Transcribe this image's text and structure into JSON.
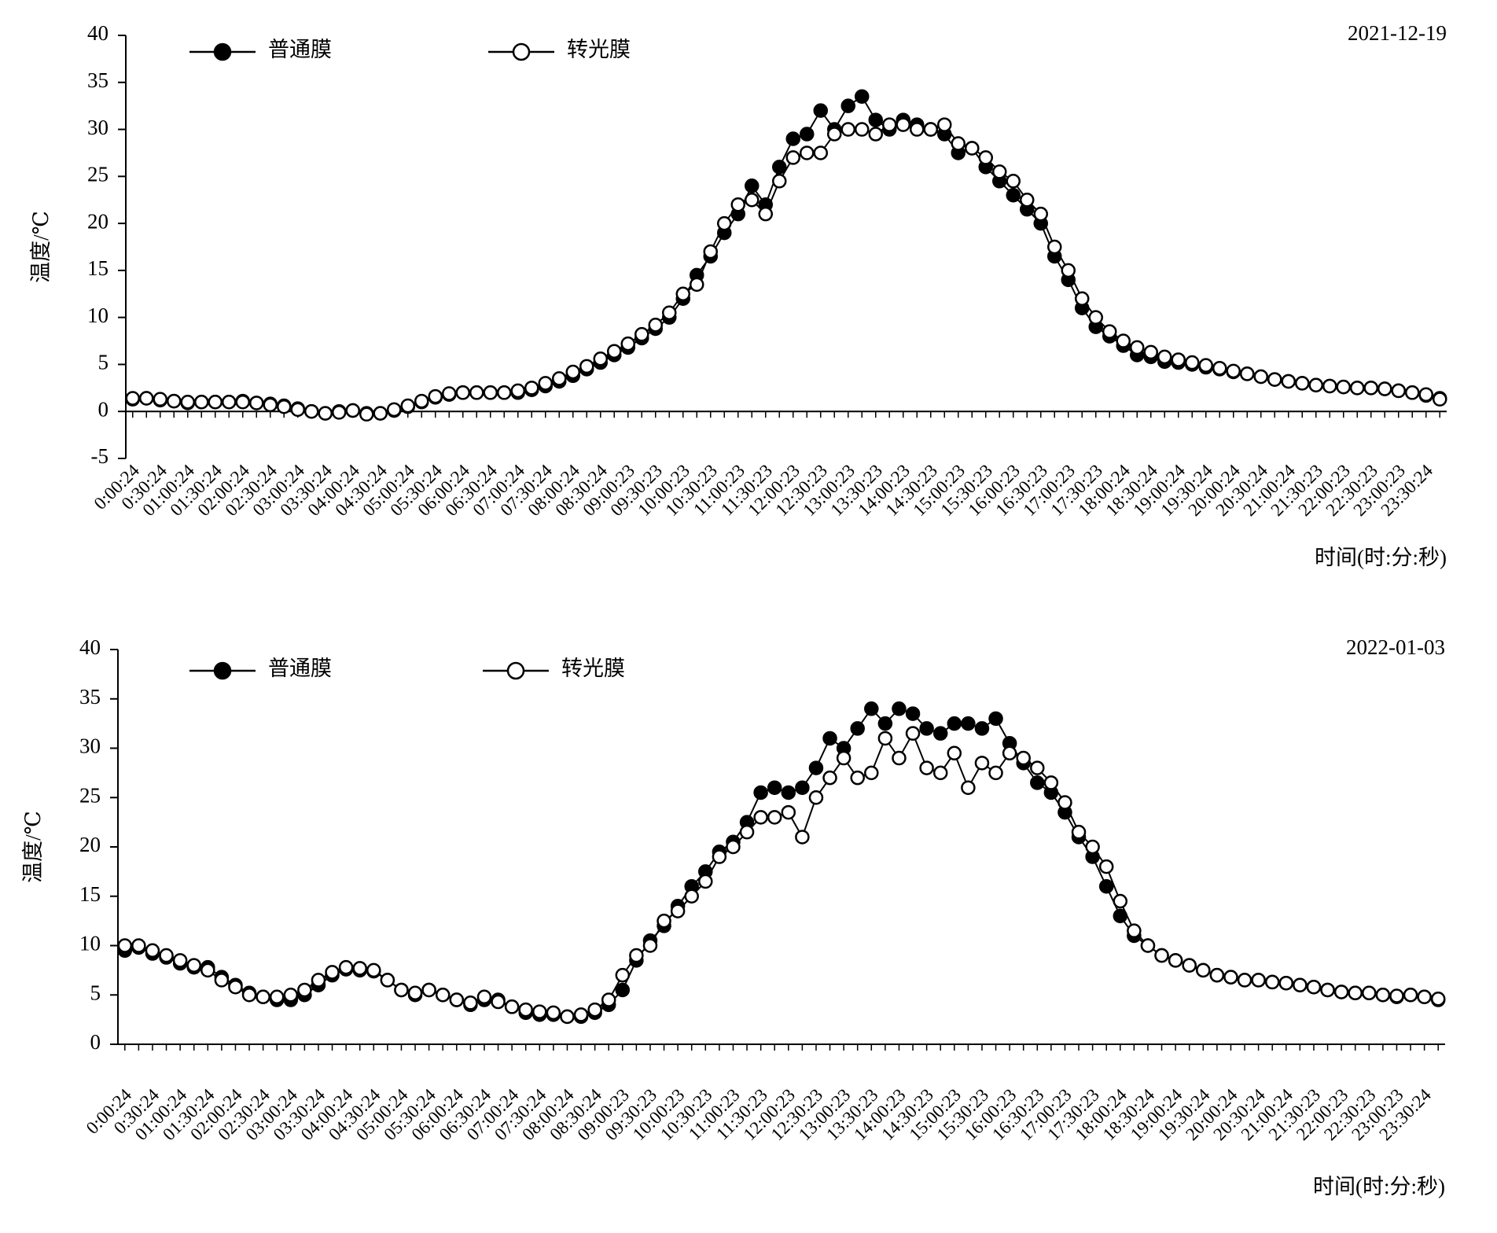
{
  "chart_data": [
    {
      "type": "line",
      "annotation": "2021-12-19",
      "x_label": "时间(时:分:秒)",
      "y_label": "温度/℃",
      "ylim": [
        -5,
        40
      ],
      "yticks": [
        -5,
        0,
        5,
        10,
        15,
        20,
        25,
        30,
        35,
        40
      ],
      "legend": "top-left",
      "categories": [
        "0:00:24",
        null,
        "0:30:24",
        null,
        "01:00:24",
        null,
        "01:30:24",
        null,
        "02:00:24",
        null,
        "02:30:24",
        null,
        "03:00:24",
        null,
        "03:30:24",
        null,
        "04:00:24",
        null,
        "04:30:24",
        null,
        "05:00:24",
        null,
        "05:30:24",
        null,
        "06:00:24",
        null,
        "06:30:24",
        null,
        "07:00:24",
        null,
        "07:30:24",
        null,
        "08:00:24",
        null,
        "08:30:24",
        null,
        "09:00:23",
        null,
        "09:30:23",
        null,
        "10:00:23",
        null,
        "10:30:23",
        null,
        "11:00:23",
        null,
        "11:30:23",
        null,
        "12:00:23",
        null,
        "12:30:23",
        null,
        "13:00:23",
        null,
        "13:30:23",
        null,
        "14:00:23",
        null,
        "14:30:23",
        null,
        "15:00:23",
        null,
        "15:30:23",
        null,
        "16:00:23",
        null,
        "16:30:23",
        null,
        "17:00:23",
        null,
        "17:30:23",
        null,
        "18:00:24",
        null,
        "18:30:24",
        null,
        "19:00:24",
        null,
        "19:30:24",
        null,
        "20:00:24",
        null,
        "20:30:24",
        null,
        "21:00:24",
        null,
        "21:30:23",
        null,
        "22:00:23",
        null,
        "22:30:23",
        null,
        "23:00:23",
        null,
        "23:30:24",
        null
      ],
      "series": [
        {
          "name": "普通膜",
          "color": "#000000",
          "values": [
            1.3,
            1.4,
            1.2,
            1.1,
            0.9,
            1.0,
            1.0,
            1.0,
            1.1,
            0.9,
            0.8,
            0.6,
            0.3,
            0.0,
            -0.2,
            0.0,
            0.1,
            -0.2,
            -0.2,
            0.1,
            0.5,
            1.0,
            1.5,
            1.8,
            2.0,
            2.0,
            2.0,
            2.0,
            2.0,
            2.3,
            2.7,
            3.2,
            3.8,
            4.5,
            5.2,
            6.0,
            6.8,
            7.8,
            8.8,
            10.0,
            12.0,
            14.5,
            16.5,
            19.0,
            21.0,
            24.0,
            22.0,
            26.0,
            29.0,
            29.5,
            32.0,
            30.0,
            32.5,
            33.5,
            31.0,
            30.0,
            31.0,
            30.5,
            30.0,
            29.5,
            27.5,
            28.0,
            26.0,
            24.5,
            23.0,
            21.5,
            20.0,
            16.5,
            14.0,
            11.0,
            9.0,
            8.0,
            7.0,
            6.0,
            5.8,
            5.3,
            5.2,
            5.0,
            4.7,
            4.5,
            4.2,
            4.0,
            3.7,
            3.4,
            3.2,
            3.0,
            2.8,
            2.7,
            2.6,
            2.5,
            2.5,
            2.4,
            2.2,
            2.0,
            1.7,
            1.4
          ]
        },
        {
          "name": "转光膜",
          "color": "#ffffff",
          "values": [
            1.4,
            1.4,
            1.3,
            1.1,
            1.0,
            1.0,
            1.0,
            1.0,
            1.0,
            0.9,
            0.7,
            0.5,
            0.2,
            0.0,
            -0.2,
            -0.1,
            0.1,
            -0.3,
            -0.2,
            0.2,
            0.6,
            1.1,
            1.6,
            1.9,
            2.0,
            2.0,
            2.0,
            2.0,
            2.2,
            2.5,
            3.0,
            3.5,
            4.2,
            4.8,
            5.6,
            6.4,
            7.2,
            8.2,
            9.2,
            10.5,
            12.5,
            13.5,
            17.0,
            20.0,
            22.0,
            22.5,
            21.0,
            24.5,
            27.0,
            27.5,
            27.5,
            29.5,
            30.0,
            30.0,
            29.5,
            30.5,
            30.5,
            30.0,
            30.0,
            30.5,
            28.5,
            28.0,
            27.0,
            25.5,
            24.5,
            22.5,
            21.0,
            17.5,
            15.0,
            12.0,
            10.0,
            8.5,
            7.5,
            6.8,
            6.3,
            5.8,
            5.5,
            5.2,
            4.9,
            4.6,
            4.3,
            4.0,
            3.7,
            3.4,
            3.2,
            3.0,
            2.8,
            2.7,
            2.6,
            2.5,
            2.5,
            2.4,
            2.2,
            2.0,
            1.8,
            1.3
          ]
        }
      ]
    },
    {
      "type": "line",
      "annotation": "2022-01-03",
      "x_label": "时间(时:分:秒)",
      "y_label": "温度/℃",
      "ylim": [
        0,
        40
      ],
      "yticks": [
        0,
        5,
        10,
        15,
        20,
        25,
        30,
        35,
        40
      ],
      "legend": "top-left",
      "categories": [
        "0:00:24",
        null,
        "0:30:24",
        null,
        "01:00:24",
        null,
        "01:30:24",
        null,
        "02:00:24",
        null,
        "02:30:24",
        null,
        "03:00:24",
        null,
        "03:30:24",
        null,
        "04:00:24",
        null,
        "04:30:24",
        null,
        "05:00:24",
        null,
        "05:30:24",
        null,
        "06:00:24",
        null,
        "06:30:24",
        null,
        "07:00:24",
        null,
        "07:30:24",
        null,
        "08:00:24",
        null,
        "08:30:24",
        null,
        "09:00:23",
        null,
        "09:30:23",
        null,
        "10:00:23",
        null,
        "10:30:23",
        null,
        "11:00:23",
        null,
        "11:30:23",
        null,
        "12:00:23",
        null,
        "12:30:23",
        null,
        "13:00:23",
        null,
        "13:30:23",
        null,
        "14:00:23",
        null,
        "14:30:23",
        null,
        "15:00:23",
        null,
        "15:30:23",
        null,
        "16:00:23",
        null,
        "16:30:23",
        null,
        "17:00:23",
        null,
        "17:30:23",
        null,
        "18:00:24",
        null,
        "18:30:24",
        null,
        "19:00:24",
        null,
        "19:30:24",
        null,
        "20:00:24",
        null,
        "20:30:24",
        null,
        "21:00:24",
        null,
        "21:30:23",
        null,
        "22:00:23",
        null,
        "22:30:23",
        null,
        "23:00:23",
        null,
        "23:30:24",
        null
      ],
      "series": [
        {
          "name": "普通膜",
          "color": "#000000",
          "values": [
            9.5,
            9.8,
            9.2,
            8.8,
            8.2,
            7.8,
            7.8,
            6.8,
            6.0,
            5.2,
            4.8,
            4.5,
            4.5,
            5.0,
            6.0,
            7.0,
            7.6,
            7.5,
            7.4,
            6.5,
            5.5,
            5.0,
            5.5,
            5.0,
            4.5,
            4.0,
            4.5,
            4.5,
            3.8,
            3.2,
            3.0,
            3.0,
            2.8,
            2.8,
            3.2,
            4.0,
            5.5,
            8.5,
            10.5,
            12.0,
            14.0,
            16.0,
            17.5,
            19.5,
            20.5,
            22.5,
            25.5,
            26.0,
            25.5,
            26.0,
            28.0,
            31.0,
            30.0,
            32.0,
            34.0,
            32.5,
            34.0,
            33.5,
            32.0,
            31.5,
            32.5,
            32.5,
            32.0,
            33.0,
            30.5,
            28.5,
            26.5,
            25.5,
            23.5,
            21.0,
            19.0,
            16.0,
            13.0,
            11.0,
            10.0,
            9.0,
            8.5,
            8.0,
            7.5,
            7.0,
            6.8,
            6.5,
            6.5,
            6.3,
            6.2,
            6.0,
            5.8,
            5.5,
            5.3,
            5.2,
            5.2,
            5.0,
            4.8,
            5.0,
            4.8,
            4.5
          ]
        },
        {
          "name": "转光膜",
          "color": "#ffffff",
          "values": [
            10.0,
            10.0,
            9.5,
            9.0,
            8.5,
            8.0,
            7.5,
            6.5,
            5.8,
            5.0,
            4.8,
            4.8,
            5.0,
            5.5,
            6.5,
            7.3,
            7.8,
            7.7,
            7.5,
            6.5,
            5.5,
            5.2,
            5.5,
            5.0,
            4.5,
            4.2,
            4.8,
            4.3,
            3.8,
            3.5,
            3.3,
            3.2,
            2.8,
            3.0,
            3.5,
            4.5,
            7.0,
            9.0,
            10.0,
            12.5,
            13.5,
            15.0,
            16.5,
            19.0,
            20.0,
            21.5,
            23.0,
            23.0,
            23.5,
            21.0,
            25.0,
            27.0,
            29.0,
            27.0,
            27.5,
            31.0,
            29.0,
            31.5,
            28.0,
            27.5,
            29.5,
            26.0,
            28.5,
            27.5,
            29.5,
            29.0,
            28.0,
            26.5,
            24.5,
            21.5,
            20.0,
            18.0,
            14.5,
            11.5,
            10.0,
            9.0,
            8.5,
            8.0,
            7.5,
            7.0,
            6.8,
            6.5,
            6.5,
            6.3,
            6.2,
            6.0,
            5.8,
            5.5,
            5.3,
            5.2,
            5.2,
            5.0,
            4.9,
            5.0,
            4.8,
            4.6
          ]
        }
      ]
    }
  ]
}
